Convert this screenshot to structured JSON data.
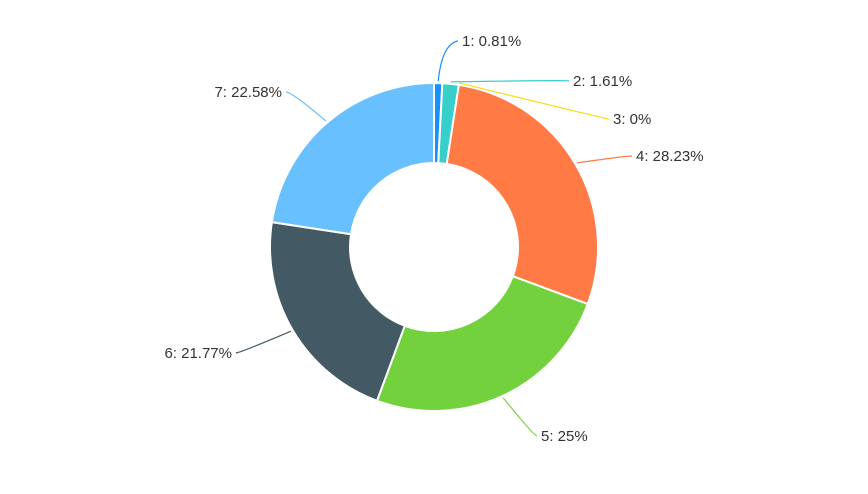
{
  "chart_data": {
    "type": "pie",
    "donut": true,
    "slices": [
      {
        "name": "1",
        "value": 0.81,
        "label": "1: 0.81%",
        "color": "#1890ff"
      },
      {
        "name": "2",
        "value": 1.61,
        "label": "2: 1.61%",
        "color": "#36cfc9"
      },
      {
        "name": "3",
        "value": 0,
        "label": "3: 0%",
        "color": "#fadb14"
      },
      {
        "name": "4",
        "value": 28.23,
        "label": "4: 28.23%",
        "color": "#ff7a45"
      },
      {
        "name": "5",
        "value": 25,
        "label": "5: 25%",
        "color": "#73d13d"
      },
      {
        "name": "6",
        "value": 21.77,
        "label": "6: 21.77%",
        "color": "#435964"
      },
      {
        "name": "7",
        "value": 22.58,
        "label": "7: 22.58%",
        "color": "#69c0ff"
      }
    ],
    "legend": "none"
  }
}
